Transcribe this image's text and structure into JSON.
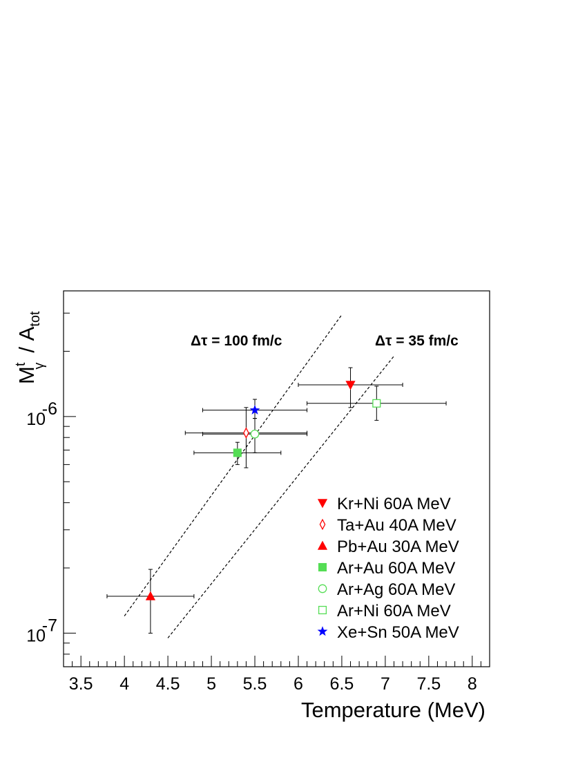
{
  "chart_data": {
    "type": "scatter",
    "xlabel": "Temperature (MeV)",
    "ylabel": {
      "main": "M",
      "sup": "t",
      "sub": "γ",
      "suffix": "/ A",
      "suffix_sub": "tot"
    },
    "x_scale": "linear",
    "y_scale": "log",
    "xlim": [
      3.3,
      8.2
    ],
    "ylim": [
      7e-08,
      3.8e-06
    ],
    "x_ticks": [
      "3.5",
      "4",
      "4.5",
      "5",
      "5.5",
      "6",
      "6.5",
      "7",
      "7.5",
      "8"
    ],
    "y_ticks": [
      {
        "value": 1e-07,
        "base": "10",
        "exp": "-7"
      },
      {
        "value": 1e-06,
        "base": "10",
        "exp": "-6"
      }
    ],
    "grid": false,
    "legend_position": "bottom-right",
    "series": [
      {
        "name": "Kr+Ni  60A MeV",
        "marker": "triangle-down",
        "filled": true,
        "color": "#ff0000",
        "points": [
          {
            "x": 6.6,
            "y": 1.4e-06,
            "xerr": 0.6,
            "yerr_low": 1.1e-06,
            "yerr_high": 1.68e-06
          }
        ]
      },
      {
        "name": "Ta+Au 40A MeV",
        "marker": "diamond",
        "filled": false,
        "color": "#ff0000",
        "points": [
          {
            "x": 5.4,
            "y": 8.4e-07,
            "xerr": 0.7,
            "yerr_low": 5.8e-07,
            "yerr_high": 1.1e-06
          }
        ]
      },
      {
        "name": "Pb+Au 30A MeV",
        "marker": "triangle-up",
        "filled": true,
        "color": "#ff0000",
        "points": [
          {
            "x": 4.3,
            "y": 1.48e-07,
            "xerr": 0.5,
            "yerr_low": 1e-07,
            "yerr_high": 1.97e-07
          }
        ]
      },
      {
        "name": "Ar+Au 60A MeV",
        "marker": "square",
        "filled": true,
        "color": "#55dd55",
        "points": [
          {
            "x": 5.3,
            "y": 6.8e-07,
            "xerr": 0.5,
            "yerr_low": 6e-07,
            "yerr_high": 7.6e-07
          }
        ]
      },
      {
        "name": "Ar+Ag 60A MeV",
        "marker": "circle",
        "filled": false,
        "color": "#55dd55",
        "points": [
          {
            "x": 5.5,
            "y": 8.3e-07,
            "xerr": 0.6,
            "yerr_low": 6.8e-07,
            "yerr_high": 9.8e-07
          }
        ]
      },
      {
        "name": "Ar+Ni  60A MeV",
        "marker": "square",
        "filled": false,
        "color": "#55dd55",
        "points": [
          {
            "x": 6.9,
            "y": 1.15e-06,
            "xerr": 0.8,
            "yerr_low": 9.6e-07,
            "yerr_high": 1.38e-06
          }
        ]
      },
      {
        "name": "Xe+Sn 50A MeV",
        "marker": "star",
        "filled": true,
        "color": "#0000ff",
        "points": [
          {
            "x": 5.5,
            "y": 1.07e-06,
            "xerr": 0.6,
            "yerr_low": 9.8e-07,
            "yerr_high": 1.2e-06
          }
        ]
      }
    ],
    "reference_lines": [
      {
        "label": "Δτ = 100 fm/c",
        "style": "dashed",
        "x": [
          4.0,
          6.5
        ],
        "y": [
          1.2e-07,
          2.95e-06
        ]
      },
      {
        "label": "Δτ = 35 fm/c",
        "style": "dashed",
        "x": [
          4.5,
          7.1
        ],
        "y": [
          9.5e-08,
          1.9e-06
        ]
      }
    ]
  }
}
